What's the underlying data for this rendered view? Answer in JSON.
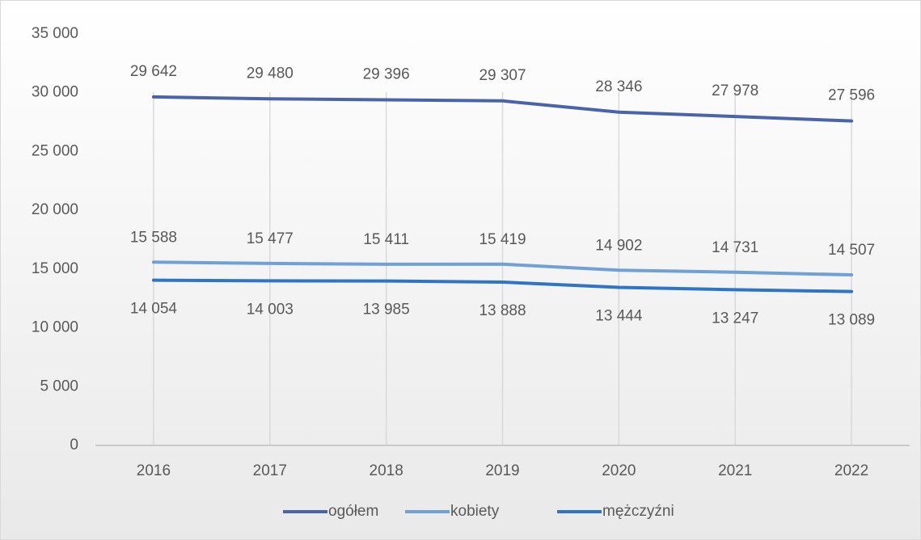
{
  "chart_data": {
    "type": "line",
    "categories": [
      "2016",
      "2017",
      "2018",
      "2019",
      "2020",
      "2021",
      "2022"
    ],
    "series": [
      {
        "name": "ogółem",
        "color": "#4a64ac",
        "values": [
          29642,
          29480,
          29396,
          29307,
          28346,
          27978,
          27596
        ],
        "value_labels": [
          "29 642",
          "29 480",
          "29 396",
          "29 307",
          "28 346",
          "27 978",
          "27 596"
        ]
      },
      {
        "name": "kobiety",
        "color": "#70a0d8",
        "values": [
          15588,
          15477,
          15411,
          15419,
          14902,
          14731,
          14507
        ],
        "value_labels": [
          "15 588",
          "15 477",
          "15 411",
          "15 419",
          "14 902",
          "14 731",
          "14 507"
        ]
      },
      {
        "name": "mężczyźni",
        "color": "#2e75c8",
        "values": [
          14054,
          14003,
          13985,
          13888,
          13444,
          13247,
          13089
        ],
        "value_labels": [
          "14 054",
          "14 003",
          "13 985",
          "13 888",
          "13 444",
          "13 247",
          "13 089"
        ]
      }
    ],
    "ylim": [
      0,
      35000
    ],
    "yticks": [
      0,
      {
        "value": 5000,
        "label": "5 000"
      },
      {
        "value": 10000,
        "label": "10 000"
      },
      {
        "value": 15000,
        "label": "15 000"
      },
      {
        "value": 20000,
        "label": "20 000"
      },
      {
        "value": 25000,
        "label": "25 000"
      },
      {
        "value": 30000,
        "label": "30 000"
      },
      {
        "value": 35000,
        "label": "35 000"
      }
    ],
    "grid": "vertical",
    "legend": "bottom"
  }
}
